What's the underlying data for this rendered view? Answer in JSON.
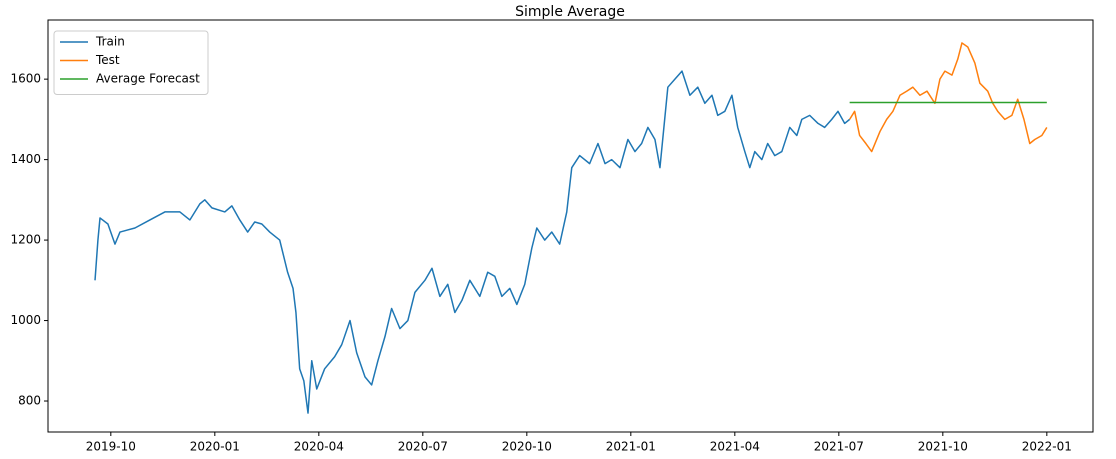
{
  "chart_data": {
    "type": "line",
    "title": "Simple Average",
    "legend": "upper left",
    "grid": false,
    "xlim": [
      2019.599,
      2022.111
    ],
    "ylim": [
      723,
      1747
    ],
    "xticks": [
      {
        "value": 2019.75,
        "label": "2019-10"
      },
      {
        "value": 2020.0,
        "label": "2020-01"
      },
      {
        "value": 2020.25,
        "label": "2020-04"
      },
      {
        "value": 2020.5,
        "label": "2020-07"
      },
      {
        "value": 2020.75,
        "label": "2020-10"
      },
      {
        "value": 2021.0,
        "label": "2021-01"
      },
      {
        "value": 2021.25,
        "label": "2021-04"
      },
      {
        "value": 2021.5,
        "label": "2021-07"
      },
      {
        "value": 2021.75,
        "label": "2021-10"
      },
      {
        "value": 2022.0,
        "label": "2022-01"
      }
    ],
    "yticks": [
      800,
      1000,
      1200,
      1400,
      1600
    ],
    "series": [
      {
        "name": "Train",
        "color": "#1f77b4",
        "x": [
          2019.712,
          2019.719,
          2019.724,
          2019.743,
          2019.76,
          2019.772,
          2019.808,
          2019.844,
          2019.88,
          2019.916,
          2019.94,
          2019.964,
          2019.976,
          2019.993,
          2020.024,
          2020.041,
          2020.06,
          2020.079,
          2020.096,
          2020.113,
          2020.132,
          2020.156,
          2020.175,
          2020.188,
          2020.195,
          2020.204,
          2020.214,
          2020.224,
          2020.233,
          2020.245,
          2020.264,
          2020.288,
          2020.305,
          2020.325,
          2020.341,
          2020.361,
          2020.377,
          2020.392,
          2020.409,
          2020.425,
          2020.445,
          2020.464,
          2020.481,
          2020.505,
          2020.522,
          2020.541,
          2020.56,
          2020.577,
          2020.594,
          2020.613,
          2020.637,
          2020.656,
          2020.673,
          2020.69,
          2020.709,
          2020.726,
          2020.745,
          2020.762,
          2020.774,
          2020.793,
          2020.81,
          2020.829,
          2020.846,
          2020.858,
          2020.877,
          2020.901,
          2020.921,
          2020.938,
          2020.954,
          2020.974,
          2020.993,
          2021.01,
          2021.026,
          2021.041,
          2021.058,
          2021.07,
          2021.089,
          2021.106,
          2021.123,
          2021.142,
          2021.161,
          2021.178,
          2021.195,
          2021.209,
          2021.226,
          2021.243,
          2021.257,
          2021.274,
          2021.286,
          2021.298,
          2021.315,
          2021.329,
          2021.346,
          2021.363,
          2021.382,
          2021.399,
          2021.411,
          2021.43,
          2021.45,
          2021.466,
          2021.483,
          2021.498,
          2021.514,
          2021.526
        ],
        "values": [
          1100,
          1200,
          1255,
          1240,
          1190,
          1220,
          1230,
          1250,
          1270,
          1270,
          1250,
          1290,
          1300,
          1280,
          1270,
          1285,
          1250,
          1220,
          1245,
          1240,
          1220,
          1200,
          1120,
          1080,
          1020,
          880,
          850,
          770,
          900,
          830,
          880,
          910,
          940,
          1000,
          920,
          860,
          840,
          900,
          960,
          1030,
          980,
          1000,
          1070,
          1100,
          1130,
          1060,
          1090,
          1020,
          1050,
          1100,
          1060,
          1120,
          1110,
          1060,
          1080,
          1040,
          1090,
          1180,
          1230,
          1200,
          1220,
          1190,
          1270,
          1380,
          1410,
          1390,
          1440,
          1390,
          1400,
          1380,
          1450,
          1420,
          1440,
          1480,
          1450,
          1380,
          1580,
          1600,
          1620,
          1560,
          1580,
          1540,
          1560,
          1510,
          1520,
          1560,
          1480,
          1420,
          1380,
          1420,
          1400,
          1440,
          1410,
          1420,
          1480,
          1460,
          1500,
          1510,
          1490,
          1480,
          1500,
          1520,
          1490,
          1500
        ]
      },
      {
        "name": "Test",
        "color": "#ff7f0e",
        "x": [
          2021.526,
          2021.538,
          2021.55,
          2021.565,
          2021.579,
          2021.599,
          2021.615,
          2021.63,
          2021.647,
          2021.663,
          2021.678,
          2021.695,
          2021.712,
          2021.731,
          2021.743,
          2021.755,
          2021.772,
          2021.786,
          2021.796,
          2021.81,
          2021.827,
          2021.839,
          2021.858,
          2021.87,
          2021.882,
          2021.899,
          2021.916,
          2021.93,
          2021.945,
          2021.959,
          2021.971,
          2021.988,
          2022.0
        ],
        "values": [
          1500,
          1520,
          1460,
          1440,
          1420,
          1470,
          1500,
          1520,
          1560,
          1570,
          1580,
          1560,
          1570,
          1540,
          1600,
          1620,
          1610,
          1650,
          1690,
          1680,
          1640,
          1590,
          1570,
          1540,
          1520,
          1500,
          1510,
          1550,
          1500,
          1440,
          1450,
          1460,
          1480
        ]
      },
      {
        "name": "Average Forecast",
        "color": "#2ca02c",
        "x": [
          2021.526,
          2022.0
        ],
        "values": [
          1542,
          1542
        ]
      }
    ]
  }
}
